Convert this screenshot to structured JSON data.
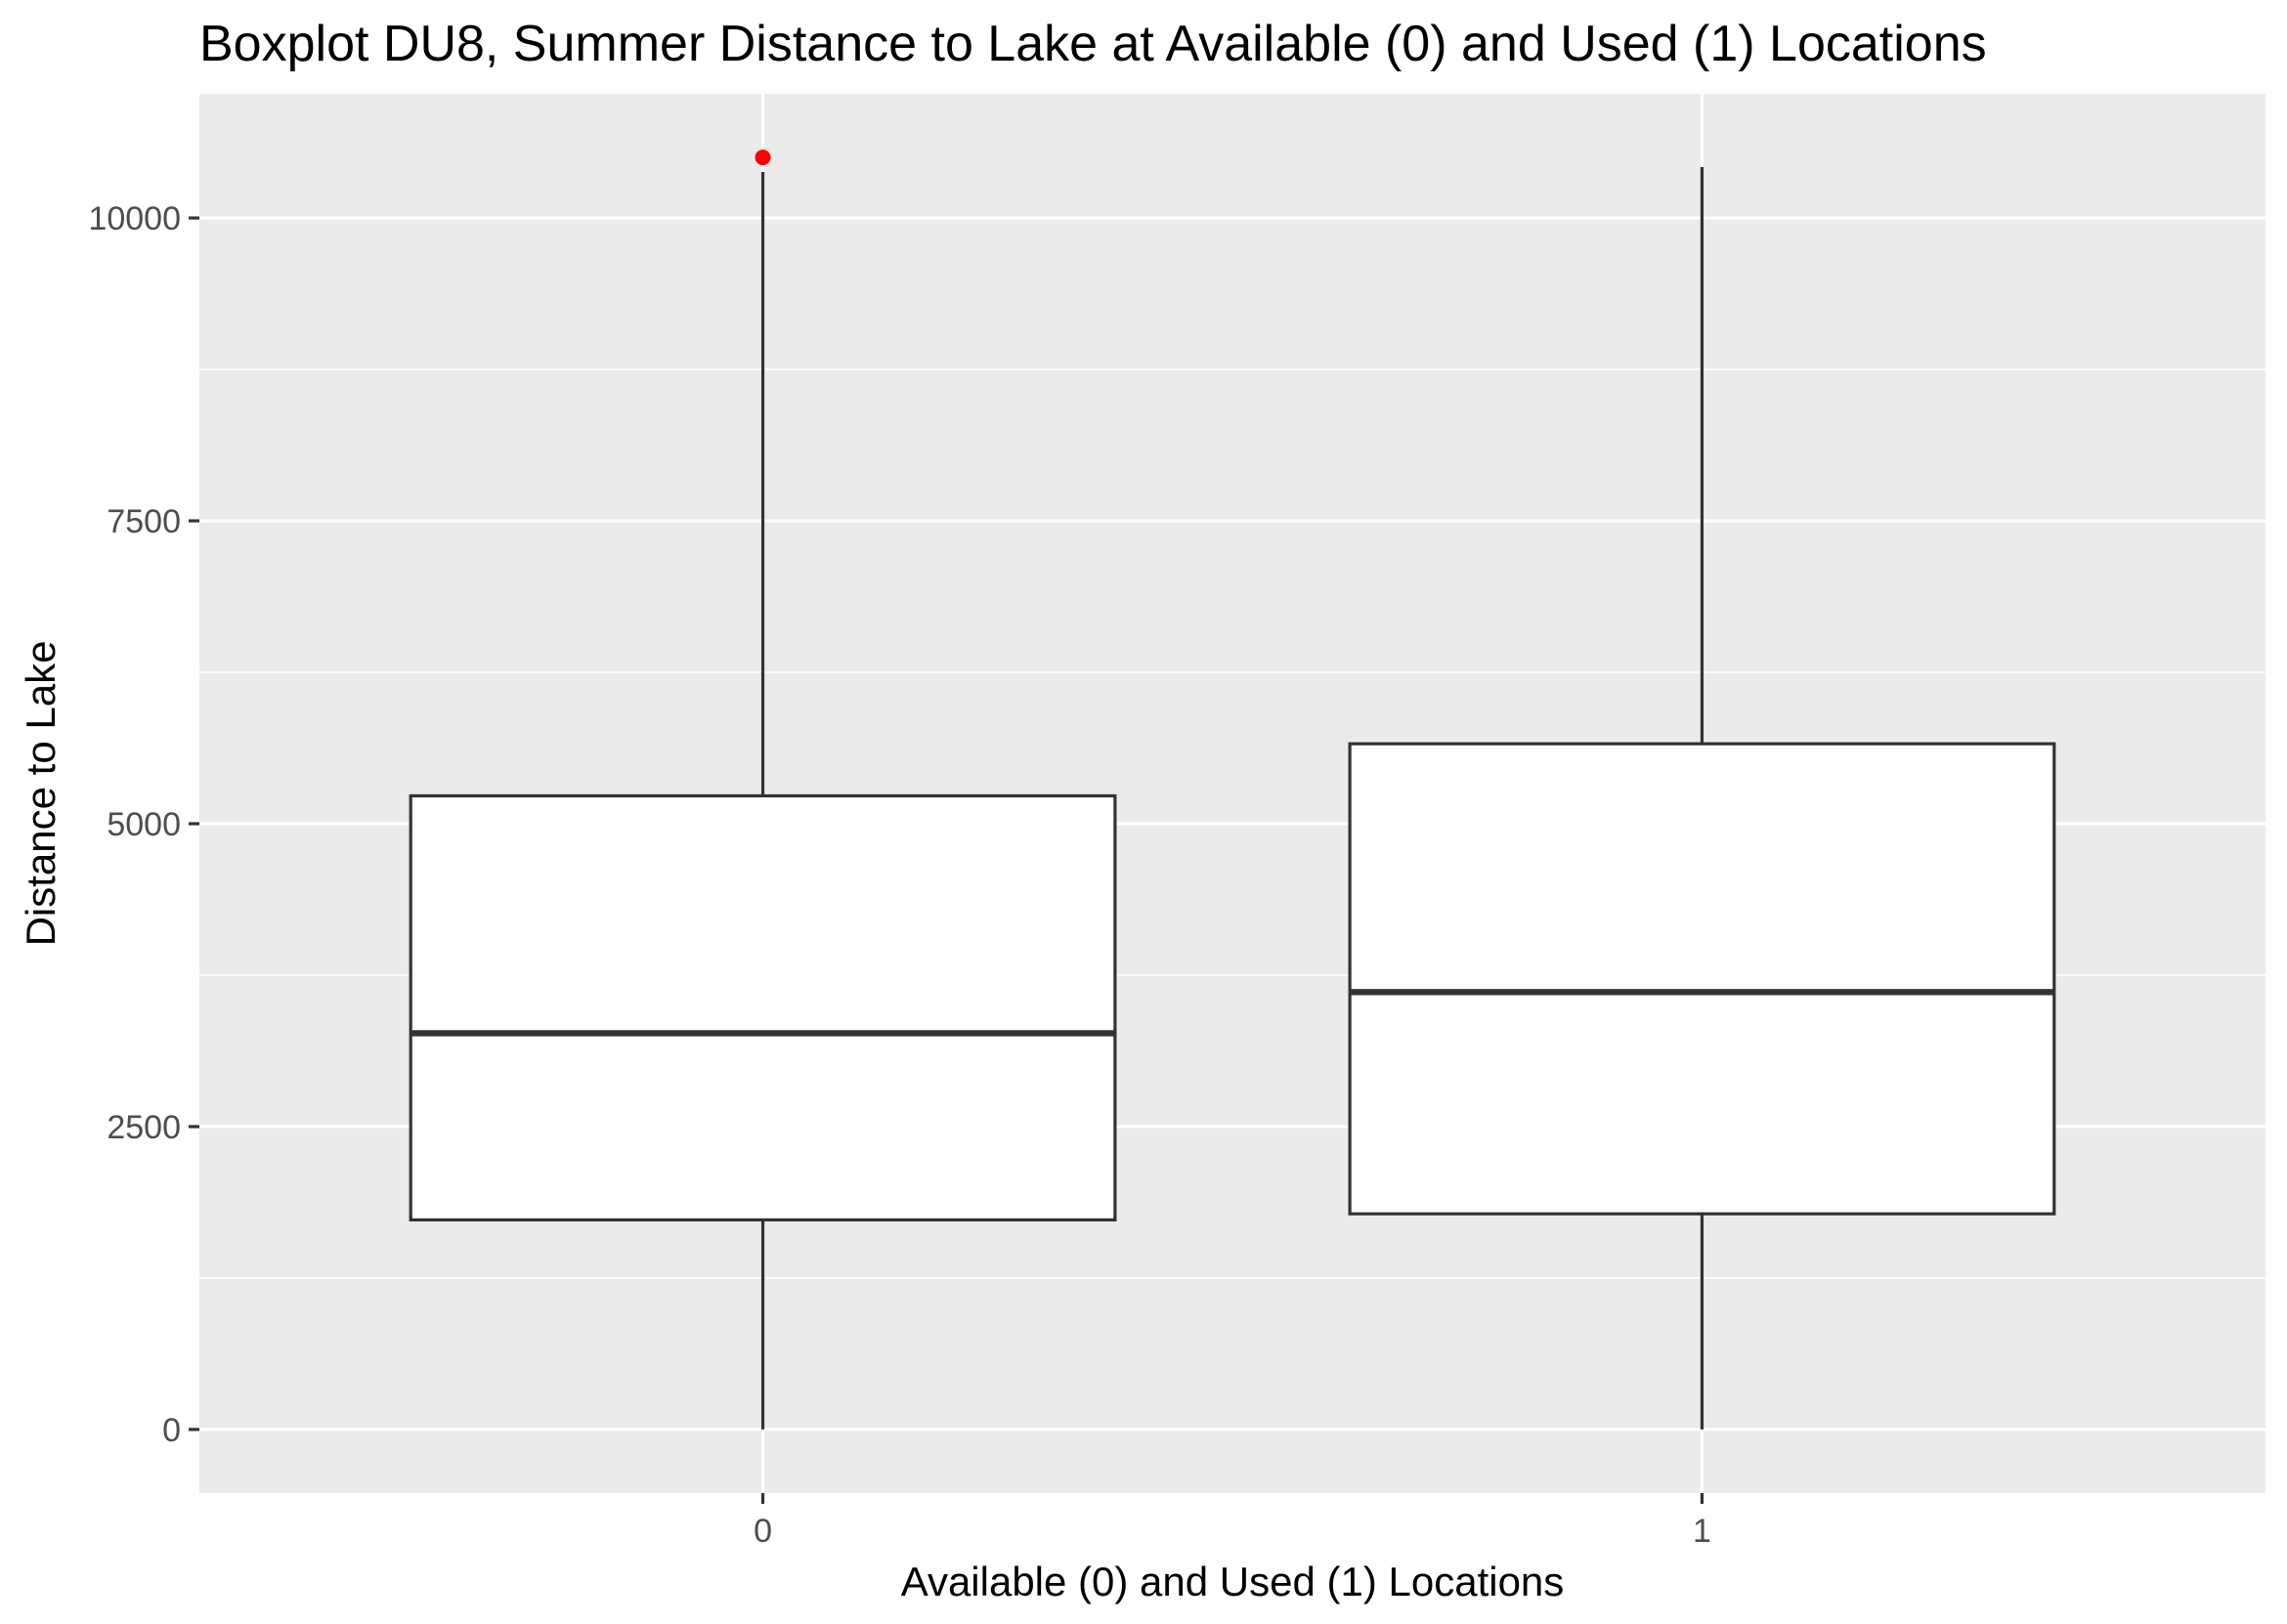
{
  "chart_data": {
    "type": "boxplot",
    "title": "Boxplot DU8, Summer Distance to Lake at Available (0) and Used (1) Locations",
    "xlabel": "Available (0) and Used (1) Locations",
    "ylabel": "Distance to Lake",
    "categories": [
      "0",
      "1"
    ],
    "boxes": [
      {
        "category": "0",
        "whisker_low": 0,
        "q1": 1730,
        "median": 3270,
        "q3": 5230,
        "whisker_high": 10380,
        "outliers": [
          10500
        ]
      },
      {
        "category": "1",
        "whisker_low": 0,
        "q1": 1780,
        "median": 3610,
        "q3": 5660,
        "whisker_high": 10420,
        "outliers": []
      }
    ],
    "y_ticks": [
      0,
      2500,
      5000,
      7500,
      10000
    ],
    "y_tick_labels": [
      "0",
      "2500",
      "5000",
      "7500",
      "10000"
    ],
    "ylim": [
      -525,
      11025
    ],
    "grid": true,
    "colors": {
      "panel": "#ebebeb",
      "grid": "#ffffff",
      "box_fill": "#ffffff",
      "box_line": "#333333",
      "outlier": "#ff0000"
    }
  }
}
